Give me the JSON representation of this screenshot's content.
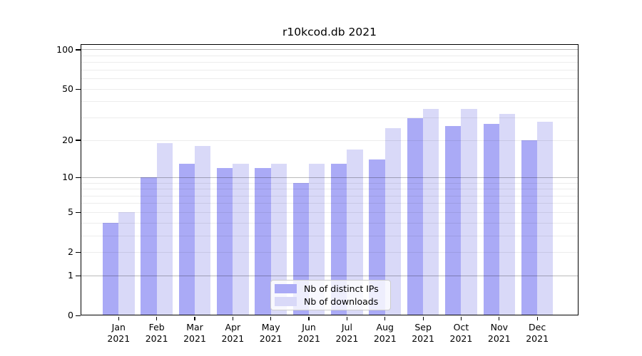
{
  "title": "r10kcod.db 2021",
  "chart_data": {
    "type": "bar",
    "title": "r10kcod.db 2021",
    "xlabel": "",
    "ylabel": "",
    "yscale": "log1p",
    "ylim": [
      0,
      110
    ],
    "grid": "horizontal",
    "legend_position": "lower-center",
    "categories": [
      "Jan",
      "Feb",
      "Mar",
      "Apr",
      "May",
      "Jun",
      "Jul",
      "Aug",
      "Sep",
      "Oct",
      "Nov",
      "Dec"
    ],
    "x_year_label": "2021",
    "yticks": [
      0,
      1,
      2,
      5,
      10,
      20,
      50,
      100
    ],
    "minor_gridlines": [
      2,
      3,
      4,
      5,
      6,
      7,
      8,
      9,
      20,
      30,
      40,
      50,
      60,
      70,
      80,
      90
    ],
    "major_gridlines": [
      1,
      10,
      100
    ],
    "series": [
      {
        "name": "Nb of distinct IPs",
        "color": "#aaaaf6",
        "values": [
          4,
          10,
          13,
          12,
          12,
          9,
          13,
          14,
          30,
          26,
          27,
          20
        ]
      },
      {
        "name": "Nb of downloads",
        "color": "#d9d9f8",
        "values": [
          5,
          19,
          18,
          13,
          13,
          13,
          17,
          25,
          35,
          35,
          32,
          28
        ]
      }
    ]
  },
  "colors": {
    "background": "#ffffff",
    "spine": "#000000",
    "text": "#000000",
    "grid_major": "rgba(0,0,0,0.27)",
    "grid_minor": "rgba(0,0,0,0.075)",
    "legend_border": "#cccccc",
    "legend_bg": "rgba(255,255,255,0.8)"
  }
}
